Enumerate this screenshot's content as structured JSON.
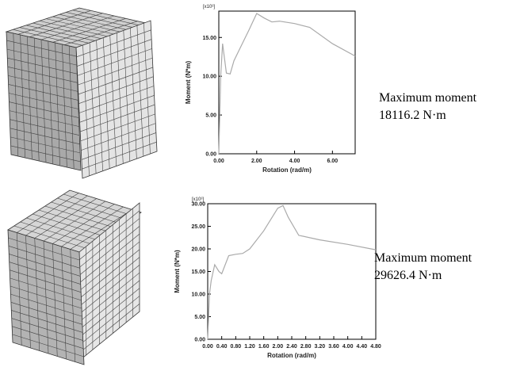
{
  "chart_data": [
    {
      "type": "line",
      "y_multiplier": "[x10³]",
      "xlabel": "Rotation (rad/m)",
      "ylabel": "Moment  (N*m)",
      "x": [
        0,
        0.1,
        0.2,
        0.4,
        0.6,
        0.8,
        1.2,
        1.6,
        2.0,
        2.4,
        2.8,
        3.2,
        4.0,
        4.8,
        6.0,
        7.2
      ],
      "values": [
        0,
        10,
        14.2,
        10.4,
        10.3,
        12,
        14,
        16,
        18.1,
        17.5,
        17.0,
        17.1,
        16.8,
        16.3,
        14.2,
        12.6
      ],
      "color": "#aaaaaa",
      "xlim": [
        0,
        7.2
      ],
      "ylim": [
        0,
        18.4
      ],
      "xticks": [
        {
          "value": 0,
          "label": "0.00"
        },
        {
          "value": 2,
          "label": "2.00"
        },
        {
          "value": 4,
          "label": "4.00"
        },
        {
          "value": 6,
          "label": "6.00"
        }
      ],
      "yticks": [
        {
          "value": 0,
          "label": "0.00"
        },
        {
          "value": 5,
          "label": "5.00"
        },
        {
          "value": 10,
          "label": "10.00"
        },
        {
          "value": 15,
          "label": "15.00"
        }
      ],
      "annotation": [
        "Maximum moment",
        "18116.2 N·m"
      ]
    },
    {
      "type": "line",
      "y_multiplier": "[x10³]",
      "xlabel": "Rotation (rad/m)",
      "ylabel": "Moment  (N*m)",
      "x": [
        0,
        0.05,
        0.1,
        0.2,
        0.32,
        0.4,
        0.6,
        0.8,
        1.0,
        1.2,
        1.6,
        2.0,
        2.15,
        2.3,
        2.6,
        3.2,
        4.0,
        4.8
      ],
      "values": [
        0,
        10,
        13,
        16.5,
        15,
        14.5,
        18.5,
        18.8,
        19,
        20,
        24,
        29,
        29.6,
        27,
        23,
        22,
        21,
        19.8
      ],
      "color": "#aaaaaa",
      "xlim": [
        0,
        4.8
      ],
      "ylim": [
        0,
        30
      ],
      "xticks": [
        {
          "value": 0,
          "label": "0.00"
        },
        {
          "value": 0.4,
          "label": "0.40"
        },
        {
          "value": 0.8,
          "label": "0.80"
        },
        {
          "value": 1.2,
          "label": "1.20"
        },
        {
          "value": 1.6,
          "label": "1.60"
        },
        {
          "value": 2.0,
          "label": "2.00"
        },
        {
          "value": 2.4,
          "label": "2.40"
        },
        {
          "value": 2.8,
          "label": "2.80"
        },
        {
          "value": 3.2,
          "label": "3.20"
        },
        {
          "value": 3.6,
          "label": "3.60"
        },
        {
          "value": 4.0,
          "label": "4.00"
        },
        {
          "value": 4.4,
          "label": "4.40"
        },
        {
          "value": 4.8,
          "label": "4.80"
        }
      ],
      "yticks": [
        {
          "value": 0,
          "label": "0.00"
        },
        {
          "value": 5,
          "label": "5.00"
        },
        {
          "value": 10,
          "label": "10.00"
        },
        {
          "value": 15,
          "label": "15.00"
        },
        {
          "value": 20,
          "label": "20.00"
        },
        {
          "value": 25,
          "label": "25.00"
        },
        {
          "value": 30,
          "label": "30.00"
        }
      ],
      "annotation": [
        "Maximum moment",
        "29626.4 N·m"
      ]
    }
  ]
}
